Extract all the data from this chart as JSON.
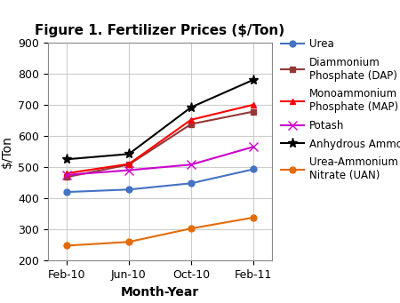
{
  "title": "Figure 1. Fertilizer Prices ($/Ton)",
  "xlabel": "Month-Year",
  "ylabel": "$/Ton",
  "x_labels": [
    "Feb-10",
    "Jun-10",
    "Oct-10",
    "Feb-11"
  ],
  "x_positions": [
    0,
    1,
    2,
    3
  ],
  "ylim": [
    200,
    900
  ],
  "yticks": [
    200,
    300,
    400,
    500,
    600,
    700,
    800,
    900
  ],
  "series": [
    {
      "label": "Urea",
      "values": [
        420,
        428,
        448,
        493
      ],
      "color": "#4472C4",
      "marker": "o",
      "linewidth": 1.5,
      "markersize": 5
    },
    {
      "label": "Diammonium\nPhosphate (DAP)",
      "values": [
        468,
        508,
        638,
        678
      ],
      "color": "#953735",
      "marker": "s",
      "linewidth": 1.5,
      "markersize": 5
    },
    {
      "label": "Monoammonium\nPhosphate (MAP)",
      "values": [
        480,
        510,
        652,
        700
      ],
      "color": "#FF0000",
      "marker": "^",
      "linewidth": 1.5,
      "markersize": 5
    },
    {
      "label": "Potash",
      "values": [
        475,
        490,
        508,
        565
      ],
      "color": "#CC00CC",
      "marker": "x",
      "linewidth": 1.5,
      "markersize": 7
    },
    {
      "label": "Anhydrous Ammonia",
      "values": [
        525,
        542,
        692,
        780
      ],
      "color": "#000000",
      "marker": "*",
      "linewidth": 1.5,
      "markersize": 8
    },
    {
      "label": "Urea-Ammonium\nNitrate (UAN)",
      "values": [
        248,
        260,
        303,
        338
      ],
      "color": "#E36C09",
      "marker": "o",
      "linewidth": 1.5,
      "markersize": 5
    }
  ],
  "background_color": "#FFFFFF",
  "grid_color": "#CCCCCC",
  "title_fontsize": 11,
  "axis_label_fontsize": 10,
  "tick_fontsize": 9,
  "legend_fontsize": 8.5
}
